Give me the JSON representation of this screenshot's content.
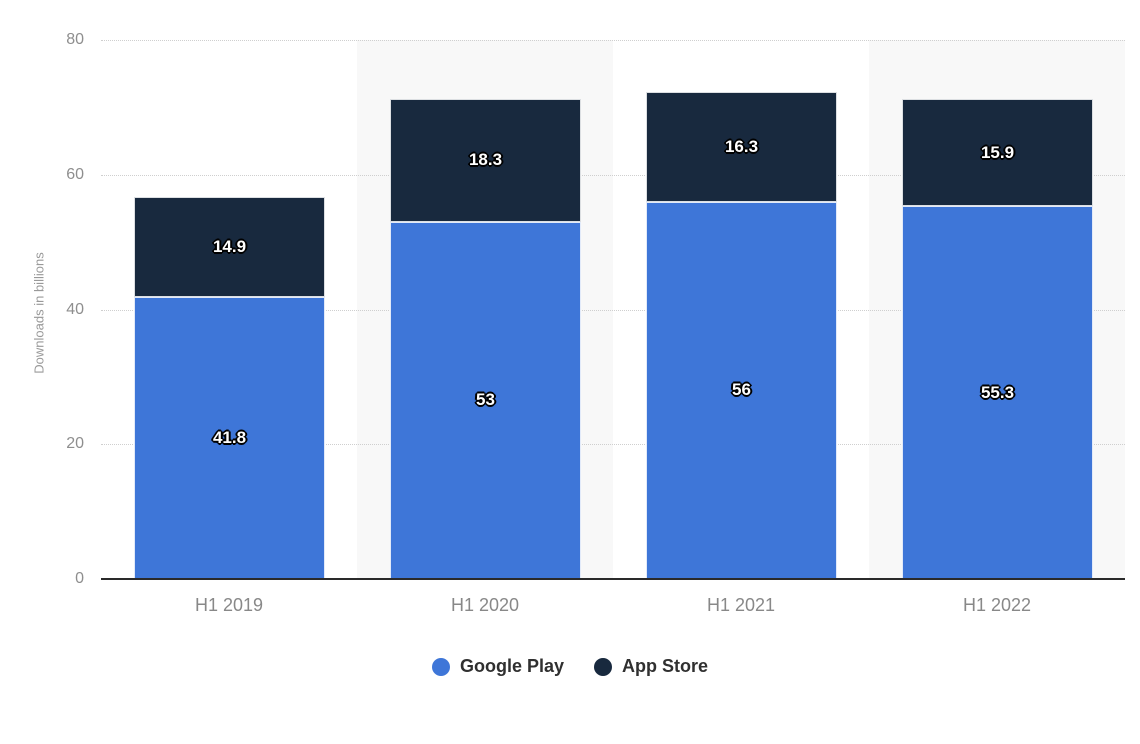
{
  "chart_data": {
    "type": "bar",
    "stacked": true,
    "categories": [
      "H1 2019",
      "H1 2020",
      "H1 2021",
      "H1 2022"
    ],
    "series": [
      {
        "name": "Google Play",
        "color": "#3E76D8",
        "values": [
          41.8,
          53,
          56,
          55.3
        ],
        "labels": [
          "41.8",
          "53",
          "56",
          "55.3"
        ]
      },
      {
        "name": "App Store",
        "color": "#18293E",
        "values": [
          14.9,
          18.3,
          16.3,
          15.9
        ],
        "labels": [
          "14.9",
          "18.3",
          "16.3",
          "15.9"
        ]
      }
    ],
    "title": "",
    "xlabel": "",
    "ylabel": "Downloads in billions",
    "ylim": [
      0,
      80
    ],
    "yticks": [
      "0",
      "20",
      "40",
      "60",
      "80"
    ],
    "grid": "horizontal-dotted",
    "legend_position": "bottom-center",
    "band_columns": [
      1,
      3
    ],
    "colors": {
      "band": "#f8f8f8",
      "gridline": "#cfcfcf",
      "axis_line": "#2a2a2a",
      "ytick_text": "#8e8e8e",
      "xtick_text": "#888888",
      "legend_text": "#303030",
      "value_label_text": "#ffffff",
      "value_label_outline": "#000000",
      "background": "#ffffff"
    }
  }
}
